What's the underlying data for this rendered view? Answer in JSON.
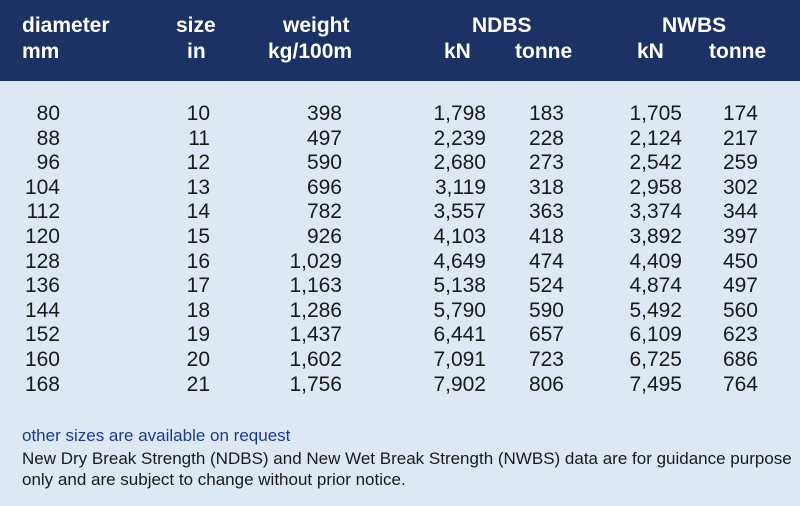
{
  "header": {
    "diameter": "diameter",
    "diameter_unit": "mm",
    "size": "size",
    "size_unit": "in",
    "weight": "weight",
    "weight_unit": "kg/100m",
    "ndbs": "NDBS",
    "ndbs_kn": "kN",
    "ndbs_tonne": "tonne",
    "nwbs": "NWBS",
    "nwbs_kn": "kN",
    "nwbs_tonne": "tonne"
  },
  "rows": [
    {
      "diameter": "80",
      "size": "10",
      "weight": "398",
      "ndbs_kn": "1,798",
      "ndbs_tonne": "183",
      "nwbs_kn": "1,705",
      "nwbs_tonne": "174"
    },
    {
      "diameter": "88",
      "size": "11",
      "weight": "497",
      "ndbs_kn": "2,239",
      "ndbs_tonne": "228",
      "nwbs_kn": "2,124",
      "nwbs_tonne": "217"
    },
    {
      "diameter": "96",
      "size": "12",
      "weight": "590",
      "ndbs_kn": "2,680",
      "ndbs_tonne": "273",
      "nwbs_kn": "2,542",
      "nwbs_tonne": "259"
    },
    {
      "diameter": "104",
      "size": "13",
      "weight": "696",
      "ndbs_kn": "3,119",
      "ndbs_tonne": "318",
      "nwbs_kn": "2,958",
      "nwbs_tonne": "302"
    },
    {
      "diameter": "112",
      "size": "14",
      "weight": "782",
      "ndbs_kn": "3,557",
      "ndbs_tonne": "363",
      "nwbs_kn": "3,374",
      "nwbs_tonne": "344"
    },
    {
      "diameter": "120",
      "size": "15",
      "weight": "926",
      "ndbs_kn": "4,103",
      "ndbs_tonne": "418",
      "nwbs_kn": "3,892",
      "nwbs_tonne": "397"
    },
    {
      "diameter": "128",
      "size": "16",
      "weight": "1,029",
      "ndbs_kn": "4,649",
      "ndbs_tonne": "474",
      "nwbs_kn": "4,409",
      "nwbs_tonne": "450"
    },
    {
      "diameter": "136",
      "size": "17",
      "weight": "1,163",
      "ndbs_kn": "5,138",
      "ndbs_tonne": "524",
      "nwbs_kn": "4,874",
      "nwbs_tonne": "497"
    },
    {
      "diameter": "144",
      "size": "18",
      "weight": "1,286",
      "ndbs_kn": "5,790",
      "ndbs_tonne": "590",
      "nwbs_kn": "5,492",
      "nwbs_tonne": "560"
    },
    {
      "diameter": "152",
      "size": "19",
      "weight": "1,437",
      "ndbs_kn": "6,441",
      "ndbs_tonne": "657",
      "nwbs_kn": "6,109",
      "nwbs_tonne": "623"
    },
    {
      "diameter": "160",
      "size": "20",
      "weight": "1,602",
      "ndbs_kn": "7,091",
      "ndbs_tonne": "723",
      "nwbs_kn": "6,725",
      "nwbs_tonne": "686"
    },
    {
      "diameter": "168",
      "size": "21",
      "weight": "1,756",
      "ndbs_kn": "7,902",
      "ndbs_tonne": "806",
      "nwbs_kn": "7,495",
      "nwbs_tonne": "764"
    }
  ],
  "footer": {
    "note": "other sizes are available on request",
    "disclaimer": "New Dry Break Strength (NDBS) and New Wet Break Strength (NWBS) data are for guidance purpose only and are subject to change without prior notice."
  },
  "colors": {
    "header_bg": "#1c3264",
    "body_bg": "#dde8f3",
    "note_text": "#1c3a8c"
  }
}
